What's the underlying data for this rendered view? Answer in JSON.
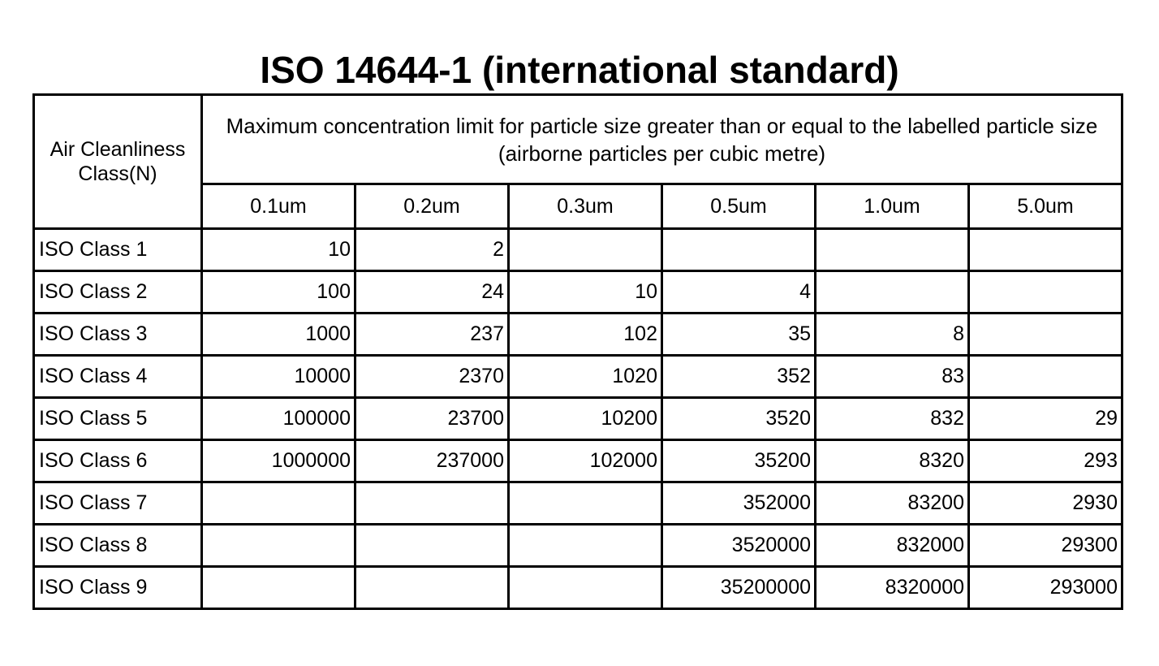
{
  "title": "ISO 14644-1 (international standard)",
  "table": {
    "class_header": "Air Cleanliness Class(N)",
    "description_header": "Maximum concentration limit for particle size greater than or equal to the labelled particle size (airborne particles per cubic metre)",
    "sizes": [
      "0.1um",
      "0.2um",
      "0.3um",
      "0.5um",
      "1.0um",
      "5.0um"
    ],
    "rows": [
      {
        "label": "ISO Class 1",
        "values": [
          "10",
          "2",
          "",
          "",
          "",
          ""
        ]
      },
      {
        "label": "ISO Class 2",
        "values": [
          "100",
          "24",
          "10",
          "4",
          "",
          ""
        ]
      },
      {
        "label": "ISO Class 3",
        "values": [
          "1000",
          "237",
          "102",
          "35",
          "8",
          ""
        ]
      },
      {
        "label": "ISO Class 4",
        "values": [
          "10000",
          "2370",
          "1020",
          "352",
          "83",
          ""
        ]
      },
      {
        "label": "ISO Class 5",
        "values": [
          "100000",
          "23700",
          "10200",
          "3520",
          "832",
          "29"
        ]
      },
      {
        "label": "ISO Class 6",
        "values": [
          "1000000",
          "237000",
          "102000",
          "35200",
          "8320",
          "293"
        ]
      },
      {
        "label": "ISO Class 7",
        "values": [
          "",
          "",
          "",
          "352000",
          "83200",
          "2930"
        ]
      },
      {
        "label": "ISO Class 8",
        "values": [
          "",
          "",
          "",
          "3520000",
          "832000",
          "29300"
        ]
      },
      {
        "label": "ISO Class 9",
        "values": [
          "",
          "",
          "",
          "35200000",
          "8320000",
          "293000"
        ]
      }
    ]
  }
}
